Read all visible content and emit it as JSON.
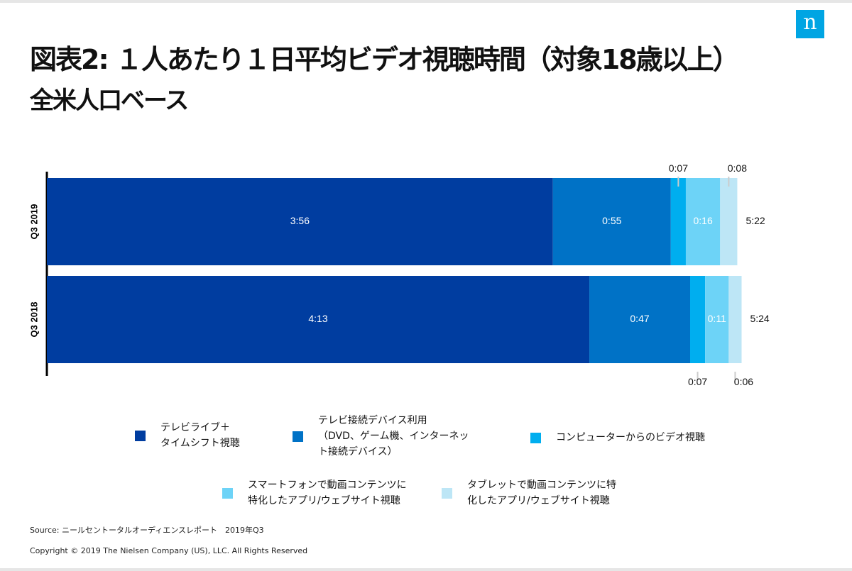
{
  "logo": "n",
  "title": "図表2: １人あたり１日平均ビデオ視聴時間（対象18歳以上）",
  "subtitle": "全米人口ベース",
  "chart_data": {
    "type": "bar",
    "orientation": "horizontal",
    "stacked": true,
    "categories": [
      "Q3 2019",
      "Q3 2018"
    ],
    "series": [
      {
        "name": "テレビライブ＋\nタイムシフト視聴",
        "color": "#003DA0",
        "values": [
          236,
          253
        ],
        "labels": [
          "3:56",
          "4:13"
        ]
      },
      {
        "name": "テレビ接続デバイス利用\n（DVD、ゲーム機、インターネッ\nト接続デバイス）",
        "color": "#0072C6",
        "values": [
          55,
          47
        ],
        "labels": [
          "0:55",
          "0:47"
        ]
      },
      {
        "name": "コンピューターからのビデオ視聴",
        "color": "#00AEEF",
        "values": [
          7,
          7
        ],
        "labels": [
          "0:07",
          "0:07"
        ]
      },
      {
        "name": "スマートフォンで動画コンテンツに\n特化したアプリ/ウェブサイト視聴",
        "color": "#6DD3F7",
        "values": [
          16,
          11
        ],
        "labels": [
          "0:16",
          "0:11"
        ]
      },
      {
        "name": "タブレットで動画コンテンツに特\n化したアプリ/ウェブサイト視聴",
        "color": "#BDE6F6",
        "values": [
          8,
          6
        ],
        "labels": [
          "0:08",
          "0:06"
        ]
      }
    ],
    "totals": [
      "5:22",
      "5:24"
    ],
    "unit": "h:mm",
    "grid": false
  },
  "footer": {
    "source": "Source: ニールセントータルオーディエンスレポート　2019年Q3",
    "copyright": "Copyright © 2019 The Nielsen Company (US), LLC. All Rights Reserved"
  }
}
